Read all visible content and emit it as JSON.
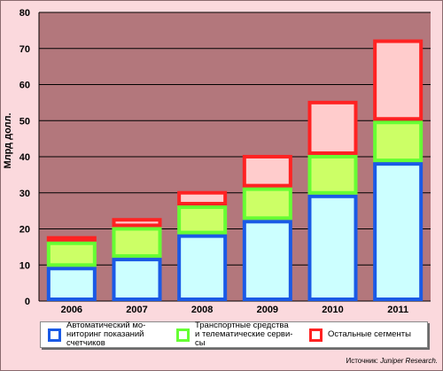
{
  "chart_data": {
    "type": "bar",
    "stacked": true,
    "ylabel": "Млрд долл.",
    "ylim": [
      0,
      80
    ],
    "yticks": [
      0,
      10,
      20,
      30,
      40,
      50,
      60,
      70,
      80
    ],
    "grid": true,
    "categories": [
      "2006",
      "2007",
      "2008",
      "2009",
      "2010",
      "2011"
    ],
    "series": [
      {
        "name": "Автоматический мониторинг показаний счетчиков",
        "name_lines": [
          "Автоматический мо-",
          "ниторинг показаний",
          "счетчиков"
        ],
        "values": [
          9.5,
          12,
          18.5,
          22.5,
          29.5,
          38.5
        ],
        "border_color": "#1a5ae6",
        "fill_color": "#ccffff"
      },
      {
        "name": "Транспортные средства и телематические сервисы",
        "name_lines": [
          "Транспортные средства",
          "и телематические серви-",
          "сы"
        ],
        "values": [
          7,
          8.5,
          8,
          9,
          11,
          11.5
        ],
        "border_color": "#66ff33",
        "fill_color": "#ccff66"
      },
      {
        "name": "Остальные сегменты",
        "name_lines": [
          "Остальные сегменты"
        ],
        "values": [
          1.5,
          2.5,
          4,
          9,
          15,
          22.5
        ],
        "border_color": "#ff2222",
        "fill_color": "#ffcccc"
      }
    ],
    "colors": {
      "plot_background": "#b3777c",
      "page_background": "#fbd9dd",
      "gridline": "#000000"
    },
    "legend_placement": "bottom"
  },
  "source": {
    "prefix": "Источник: ",
    "name": "Juniper Research."
  }
}
